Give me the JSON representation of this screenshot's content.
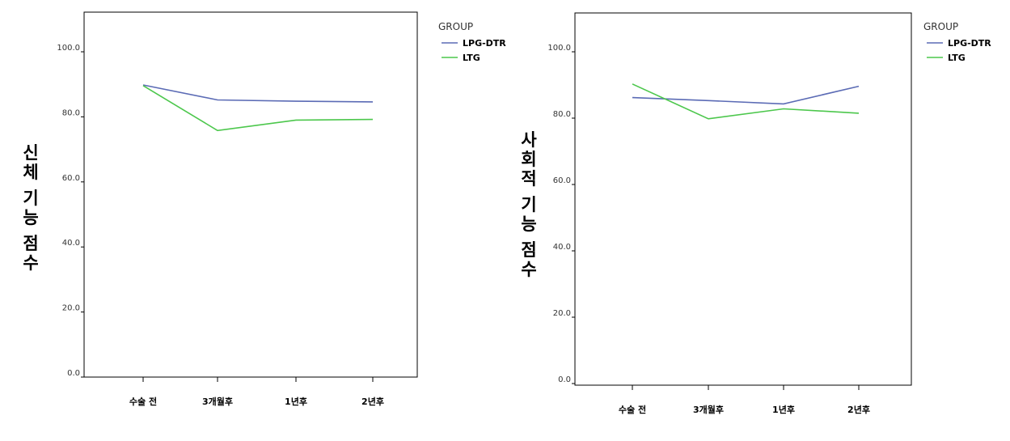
{
  "chart_data": [
    {
      "type": "line",
      "title": "",
      "xlabel": "",
      "ylabel": "신체 기능 점수",
      "categories": [
        "수술 전",
        "3개월후",
        "1년후",
        "2년후"
      ],
      "series": [
        {
          "name": "LPG-DTR",
          "values": [
            89.8,
            85.2,
            84.8,
            84.6
          ]
        },
        {
          "name": "LTG",
          "values": [
            89.6,
            75.8,
            79.0,
            79.2
          ]
        }
      ],
      "ylim": [
        0,
        110
      ],
      "yticks": [
        0,
        20,
        40,
        60,
        80,
        100
      ],
      "ytick_labels": [
        "0.0",
        "20.0",
        "40.0",
        "60.0",
        "80.0",
        "100.0"
      ],
      "legend": {
        "title": "GROUP",
        "placement": "right"
      },
      "grid": false
    },
    {
      "type": "line",
      "title": "",
      "xlabel": "",
      "ylabel": "사회적 기능 점수",
      "categories": [
        "수술 전",
        "3개월후",
        "1년후",
        "2년후"
      ],
      "series": [
        {
          "name": "LPG-DTR",
          "values": [
            86.2,
            85.3,
            84.3,
            89.6
          ]
        },
        {
          "name": "LTG",
          "values": [
            90.3,
            79.8,
            82.8,
            81.5
          ]
        }
      ],
      "ylim": [
        -3,
        107
      ],
      "yticks": [
        0,
        20,
        40,
        60,
        80,
        100
      ],
      "ytick_labels": [
        "0.0",
        "20.0",
        "40.0",
        "60.0",
        "80.0",
        "100.0"
      ],
      "legend": {
        "title": "GROUP",
        "placement": "right"
      },
      "grid": false
    }
  ],
  "colors": {
    "LPG-DTR": "#5b6bb5",
    "LTG": "#4cc74c"
  }
}
